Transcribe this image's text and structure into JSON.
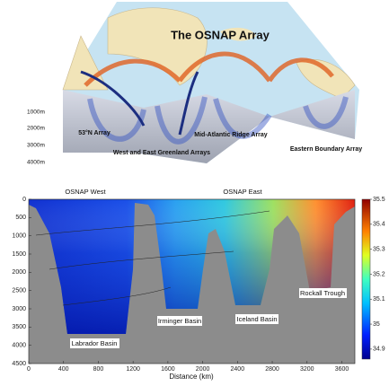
{
  "diagram": {
    "title": "The OSNAP Array",
    "depth_labels": [
      "1000m",
      "2000m",
      "3000m",
      "4000m"
    ],
    "arrays": [
      "53°N Array",
      "West and East Greenland Arrays",
      "Mid-Atlantic Ridge Array",
      "Eastern Boundary Array"
    ]
  },
  "chart_data": {
    "type": "section",
    "annotations": [
      "OSNAP West",
      "OSNAP East",
      "Labrador Basin",
      "Irminger Basin",
      "Iceland Basin",
      "Rockall Trough"
    ],
    "xlabel": "Distance (km)",
    "xlim": [
      0,
      3750
    ],
    "xticks": [
      0,
      400,
      800,
      1200,
      1600,
      2000,
      2400,
      2800,
      3200,
      3600
    ],
    "ylim": [
      0,
      4500
    ],
    "yticks": [
      0,
      500,
      1000,
      1500,
      2000,
      2500,
      3000,
      3500,
      4000,
      4500
    ],
    "clim": [
      34.86,
      35.5
    ],
    "cticks": [
      34.9,
      35,
      35.1,
      35.2,
      35.3,
      35.4,
      35.5
    ]
  }
}
